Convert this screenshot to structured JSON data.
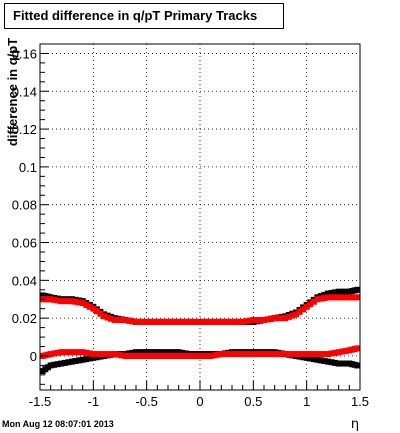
{
  "title": "Fitted difference in q/pT  Primary Tracks",
  "footer": "Mon Aug 12 08:07:01 2013",
  "chart_data": {
    "type": "scatter",
    "xlabel": "η",
    "ylabel": "difference in q/pT",
    "xlim": [
      -1.5,
      1.5
    ],
    "ylim": [
      -0.018,
      0.165
    ],
    "grid": true,
    "x_ticks": [
      -1.5,
      -1,
      -0.5,
      0,
      0.5,
      1,
      1.5
    ],
    "x_tick_labels": [
      "-1.5",
      "-1",
      "-0.5",
      "0",
      "0.5",
      "1",
      "1.5"
    ],
    "y_ticks": [
      0,
      0.02,
      0.04,
      0.06,
      0.08,
      0.1,
      0.12,
      0.14,
      0.16
    ],
    "y_tick_labels": [
      "0",
      "0.02",
      "0.04",
      "0.06",
      "0.08",
      "0.1",
      "0.12",
      "0.14",
      "0.16"
    ],
    "series": [
      {
        "color": "#000000",
        "x": [
          -1.475,
          -1.4,
          -1.3,
          -1.2,
          -1.1,
          -1.0,
          -0.9,
          -0.8,
          -0.7,
          -0.6,
          -0.5,
          -0.4,
          -0.3,
          -0.2,
          -0.1,
          0.0,
          0.1,
          0.2,
          0.3,
          0.4,
          0.5,
          0.6,
          0.7,
          0.8,
          0.9,
          1.0,
          1.1,
          1.2,
          1.3,
          1.4,
          1.475
        ],
        "y": [
          0.032,
          0.031,
          0.03,
          0.03,
          0.029,
          0.026,
          0.022,
          0.02,
          0.019,
          0.018,
          0.018,
          0.018,
          0.018,
          0.018,
          0.018,
          0.018,
          0.018,
          0.018,
          0.018,
          0.018,
          0.018,
          0.019,
          0.02,
          0.021,
          0.023,
          0.027,
          0.031,
          0.033,
          0.034,
          0.034,
          0.035
        ]
      },
      {
        "color": "#ff0000",
        "x": [
          -1.475,
          -1.4,
          -1.3,
          -1.2,
          -1.1,
          -1.0,
          -0.9,
          -0.8,
          -0.7,
          -0.6,
          -0.5,
          -0.4,
          -0.3,
          -0.2,
          -0.1,
          0.0,
          0.1,
          0.2,
          0.3,
          0.4,
          0.5,
          0.6,
          0.7,
          0.8,
          0.9,
          1.0,
          1.1,
          1.2,
          1.3,
          1.4,
          1.475
        ],
        "y": [
          0.03,
          0.03,
          0.029,
          0.029,
          0.028,
          0.025,
          0.021,
          0.019,
          0.019,
          0.018,
          0.018,
          0.018,
          0.018,
          0.018,
          0.018,
          0.018,
          0.018,
          0.018,
          0.018,
          0.018,
          0.019,
          0.019,
          0.02,
          0.02,
          0.022,
          0.026,
          0.03,
          0.031,
          0.031,
          0.031,
          0.031
        ]
      },
      {
        "color": "#000000",
        "x": [
          -1.475,
          -1.4,
          -1.3,
          -1.2,
          -1.1,
          -1.0,
          -0.9,
          -0.8,
          -0.7,
          -0.6,
          -0.5,
          -0.4,
          -0.3,
          -0.2,
          -0.1,
          0.0,
          0.1,
          0.2,
          0.3,
          0.4,
          0.5,
          0.6,
          0.7,
          0.8,
          0.9,
          1.0,
          1.1,
          1.2,
          1.3,
          1.4,
          1.475
        ],
        "y": [
          -0.008,
          -0.005,
          -0.004,
          -0.003,
          -0.002,
          -0.001,
          0.0,
          0.001,
          0.001,
          0.002,
          0.002,
          0.002,
          0.002,
          0.002,
          0.001,
          0.001,
          0.001,
          0.001,
          0.002,
          0.002,
          0.002,
          0.002,
          0.002,
          0.001,
          0.0,
          -0.001,
          -0.002,
          -0.003,
          -0.004,
          -0.004,
          -0.005
        ]
      },
      {
        "color": "#ff0000",
        "x": [
          -1.475,
          -1.4,
          -1.3,
          -1.2,
          -1.1,
          -1.0,
          -0.9,
          -0.8,
          -0.7,
          -0.6,
          -0.5,
          -0.4,
          -0.3,
          -0.2,
          -0.1,
          0.0,
          0.1,
          0.2,
          0.3,
          0.4,
          0.5,
          0.6,
          0.7,
          0.8,
          0.9,
          1.0,
          1.1,
          1.2,
          1.3,
          1.4,
          1.475
        ],
        "y": [
          0.0,
          0.001,
          0.002,
          0.002,
          0.002,
          0.001,
          0.001,
          0.001,
          0.0,
          0.0,
          0.0,
          0.0,
          0.0,
          0.0,
          0.0,
          0.0,
          0.0,
          0.001,
          0.001,
          0.001,
          0.001,
          0.001,
          0.001,
          0.001,
          0.001,
          0.001,
          0.001,
          0.001,
          0.002,
          0.003,
          0.004
        ]
      }
    ]
  }
}
